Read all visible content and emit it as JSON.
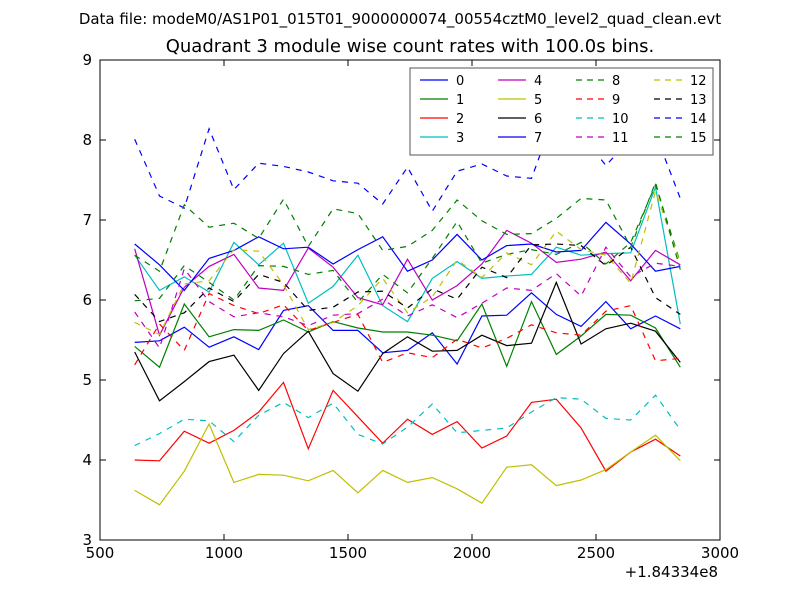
{
  "chart_data": {
    "type": "line",
    "suptitle": "Data file: modeM0/AS1P01_015T01_9000000074_00554cztM0_level2_quad_clean.evt",
    "title": "Quadrant 3 module wise count rates with 100.0s bins.",
    "xlabel": "",
    "ylabel": "",
    "x_offset_label": "+1.84334e8",
    "xlim": [
      500,
      3000
    ],
    "ylim": [
      3,
      9
    ],
    "xticks": [
      500,
      1000,
      1500,
      2000,
      2500,
      3000
    ],
    "yticks": [
      3,
      4,
      5,
      6,
      7,
      8,
      9
    ],
    "x": [
      640,
      740,
      840,
      940,
      1040,
      1140,
      1240,
      1340,
      1440,
      1540,
      1640,
      1740,
      1840,
      1940,
      2040,
      2140,
      2240,
      2340,
      2440,
      2540,
      2640,
      2740,
      2840
    ],
    "legend_position": "top-right",
    "series": [
      {
        "name": "0",
        "color": "#0000ff",
        "style": "solid",
        "values": [
          5.47,
          5.49,
          5.66,
          5.41,
          5.54,
          5.38,
          5.87,
          5.93,
          5.62,
          5.62,
          5.34,
          5.37,
          5.59,
          5.2,
          5.8,
          5.81,
          6.09,
          5.82,
          5.67,
          5.98,
          5.64,
          5.8,
          5.64
        ]
      },
      {
        "name": "1",
        "color": "#008000",
        "style": "solid",
        "values": [
          5.42,
          5.16,
          5.95,
          5.54,
          5.63,
          5.62,
          5.75,
          5.6,
          5.73,
          5.65,
          5.6,
          5.6,
          5.56,
          5.49,
          5.95,
          5.17,
          5.98,
          5.32,
          5.55,
          5.82,
          5.81,
          5.65,
          5.16
        ]
      },
      {
        "name": "2",
        "color": "#ff0000",
        "style": "solid",
        "values": [
          4.0,
          3.99,
          4.36,
          4.21,
          4.37,
          4.6,
          4.97,
          4.14,
          4.87,
          4.54,
          4.21,
          4.51,
          4.32,
          4.48,
          4.15,
          4.3,
          4.72,
          4.76,
          4.4,
          3.86,
          4.1,
          4.26,
          4.05
        ]
      },
      {
        "name": "3",
        "color": "#00bfbf",
        "style": "solid",
        "values": [
          6.56,
          6.12,
          6.29,
          6.1,
          6.72,
          6.44,
          6.71,
          5.96,
          6.17,
          6.56,
          5.93,
          5.73,
          6.27,
          6.48,
          6.27,
          6.3,
          6.32,
          6.66,
          6.56,
          6.58,
          6.59,
          7.41,
          5.7
        ]
      },
      {
        "name": "4",
        "color": "#bf00bf",
        "style": "solid",
        "values": [
          6.64,
          5.56,
          6.16,
          6.42,
          6.57,
          6.15,
          6.12,
          6.65,
          6.41,
          6.03,
          5.94,
          6.51,
          6.0,
          6.18,
          6.45,
          6.87,
          6.71,
          6.47,
          6.51,
          6.6,
          6.24,
          6.62,
          6.44
        ]
      },
      {
        "name": "5",
        "color": "#bfbf00",
        "style": "solid",
        "values": [
          3.62,
          3.44,
          3.86,
          4.45,
          3.72,
          3.82,
          3.81,
          3.74,
          3.87,
          3.59,
          3.87,
          3.72,
          3.78,
          3.64,
          3.46,
          3.91,
          3.94,
          3.68,
          3.75,
          3.88,
          4.1,
          4.31,
          3.99
        ]
      },
      {
        "name": "6",
        "color": "#000000",
        "style": "solid",
        "values": [
          5.35,
          4.74,
          4.98,
          5.23,
          5.31,
          4.87,
          5.33,
          5.61,
          5.08,
          4.86,
          5.33,
          5.54,
          5.36,
          5.37,
          5.56,
          5.43,
          5.46,
          6.22,
          5.45,
          5.64,
          5.71,
          5.61,
          5.22
        ]
      },
      {
        "name": "7",
        "color": "#0000ff",
        "style": "solid",
        "values": [
          6.7,
          6.44,
          6.12,
          6.52,
          6.62,
          6.79,
          6.64,
          6.66,
          6.45,
          6.63,
          6.79,
          6.36,
          6.5,
          6.82,
          6.5,
          6.68,
          6.7,
          6.6,
          6.62,
          6.97,
          6.7,
          6.36,
          6.42
        ]
      },
      {
        "name": "8",
        "color": "#008000",
        "style": "dashed",
        "values": [
          5.99,
          6.02,
          6.43,
          6.22,
          6.0,
          6.43,
          6.42,
          6.32,
          6.37,
          5.97,
          6.32,
          6.09,
          6.52,
          6.98,
          6.46,
          6.57,
          6.63,
          6.57,
          6.72,
          6.45,
          6.72,
          7.44,
          6.47
        ]
      },
      {
        "name": "9",
        "color": "#ff0000",
        "style": "dashed",
        "values": [
          5.19,
          5.7,
          5.37,
          6.08,
          5.93,
          5.83,
          5.94,
          5.62,
          5.72,
          5.82,
          5.22,
          5.34,
          5.28,
          5.51,
          5.4,
          5.52,
          5.69,
          5.59,
          5.56,
          5.86,
          5.93,
          5.24,
          5.27
        ]
      },
      {
        "name": "10",
        "color": "#00bfbf",
        "style": "dashed",
        "values": [
          4.18,
          4.33,
          4.51,
          4.49,
          4.23,
          4.56,
          4.72,
          4.53,
          4.71,
          4.32,
          4.2,
          4.41,
          4.7,
          4.34,
          4.37,
          4.4,
          4.6,
          4.78,
          4.76,
          4.52,
          4.5,
          4.81,
          4.38
        ]
      },
      {
        "name": "11",
        "color": "#bf00bf",
        "style": "dashed",
        "values": [
          5.85,
          5.4,
          6.39,
          5.98,
          5.79,
          5.84,
          5.79,
          5.68,
          5.81,
          5.83,
          6.01,
          5.8,
          5.94,
          5.78,
          5.96,
          6.15,
          6.12,
          6.33,
          6.05,
          6.66,
          6.29,
          6.46,
          6.42
        ]
      },
      {
        "name": "12",
        "color": "#bfbf00",
        "style": "dashed",
        "values": [
          5.72,
          5.57,
          6.2,
          6.24,
          6.63,
          6.61,
          6.19,
          5.63,
          5.72,
          5.93,
          6.27,
          5.84,
          6.04,
          6.5,
          6.28,
          6.59,
          6.44,
          6.86,
          6.63,
          6.56,
          6.21,
          7.36,
          6.46
        ]
      },
      {
        "name": "13",
        "color": "#000000",
        "style": "dashed",
        "values": [
          6.07,
          5.73,
          5.84,
          6.15,
          5.98,
          6.32,
          6.22,
          5.87,
          5.91,
          6.1,
          6.11,
          5.9,
          6.14,
          6.01,
          6.41,
          6.28,
          6.69,
          6.7,
          6.68,
          6.43,
          6.66,
          6.03,
          5.82
        ]
      },
      {
        "name": "14",
        "color": "#0000ff",
        "style": "dashed",
        "values": [
          8.01,
          7.3,
          7.15,
          8.14,
          7.38,
          7.71,
          7.67,
          7.6,
          7.49,
          7.46,
          7.2,
          7.66,
          7.11,
          7.61,
          7.7,
          7.55,
          7.52,
          8.37,
          8.08,
          7.68,
          8.02,
          8.08,
          7.27
        ]
      },
      {
        "name": "15",
        "color": "#008000",
        "style": "dashed",
        "values": [
          6.56,
          6.36,
          7.19,
          6.91,
          6.96,
          6.77,
          7.26,
          6.67,
          7.14,
          7.08,
          6.62,
          6.67,
          6.87,
          7.25,
          6.99,
          6.82,
          6.83,
          7.02,
          7.27,
          7.25,
          6.66,
          7.47,
          6.38
        ]
      }
    ]
  }
}
